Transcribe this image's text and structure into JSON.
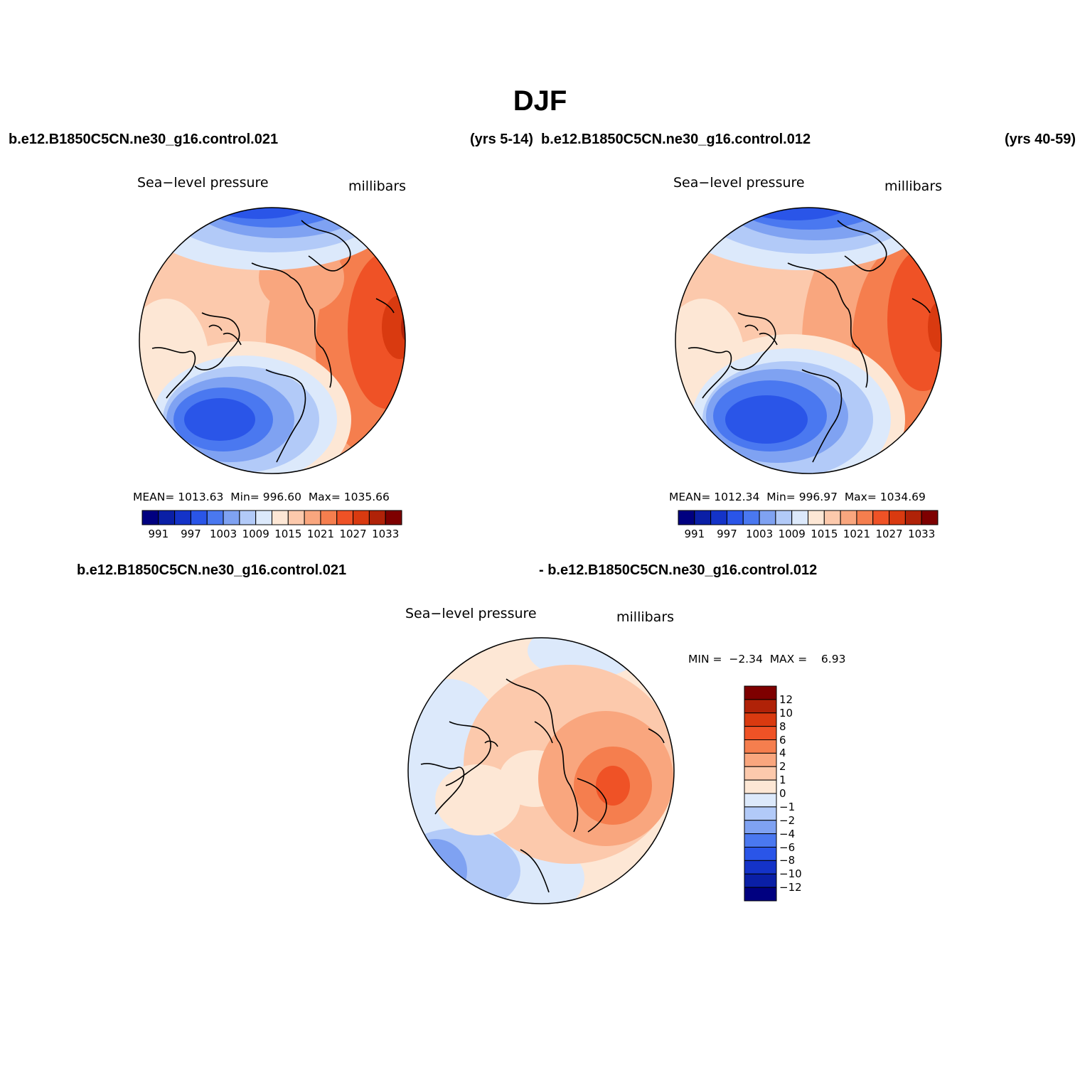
{
  "main_title": "DJF",
  "top_left_header": {
    "case": "b.e12.B1850C5CN.ne30_g16.control.021",
    "years": "(yrs 5-14)"
  },
  "top_right_header": {
    "case": "b.e12.B1850C5CN.ne30_g16.control.012",
    "years": "(yrs 40-59)"
  },
  "diff_header": {
    "left": "b.e12.B1850C5CN.ne30_g16.control.021",
    "right": "- b.e12.B1850C5CN.ne30_g16.control.012"
  },
  "panels": {
    "left": {
      "variable": "Sea−level pressure",
      "units": "millibars",
      "mean_label": "MEAN=",
      "mean": "1013.63",
      "min_label": "Min=",
      "min": "996.60",
      "max_label": "Max=",
      "max": "1035.66"
    },
    "right": {
      "variable": "Sea−level pressure",
      "units": "millibars",
      "mean_label": "MEAN=",
      "mean": "1012.34",
      "min_label": "Min=",
      "min": "996.97",
      "max_label": "Max=",
      "max": "1034.69"
    },
    "diff": {
      "variable": "Sea−level pressure",
      "units": "millibars",
      "min_label": "MIN =",
      "min": "−2.34",
      "max_label": "MAX =",
      "max": "6.93"
    }
  },
  "abs_colorbar": {
    "colors": [
      "#000080",
      "#0a1fa6",
      "#1433c8",
      "#2a55e8",
      "#4a78f0",
      "#7fa2f2",
      "#b2caf8",
      "#dce9fb",
      "#fde7d5",
      "#fcc9ac",
      "#f9a67e",
      "#f57e4e",
      "#ef5226",
      "#d93a10",
      "#b02208",
      "#7e0000"
    ],
    "labels": [
      "991",
      "997",
      "1003",
      "1009",
      "1015",
      "1021",
      "1027",
      "1033"
    ]
  },
  "diff_colorbar": {
    "colors": [
      "#7e0000",
      "#b02208",
      "#d93a10",
      "#ef5226",
      "#f57e4e",
      "#f9a67e",
      "#fcc9ac",
      "#fde7d5",
      "#dce9fb",
      "#b2caf8",
      "#7fa2f2",
      "#4a78f0",
      "#2a55e8",
      "#1433c8",
      "#0a1fa6",
      "#000080"
    ],
    "labels": [
      "12",
      "10",
      "8",
      "6",
      "4",
      "2",
      "1",
      "0",
      "−1",
      "−2",
      "−4",
      "−6",
      "−8",
      "−10",
      "−12"
    ]
  }
}
